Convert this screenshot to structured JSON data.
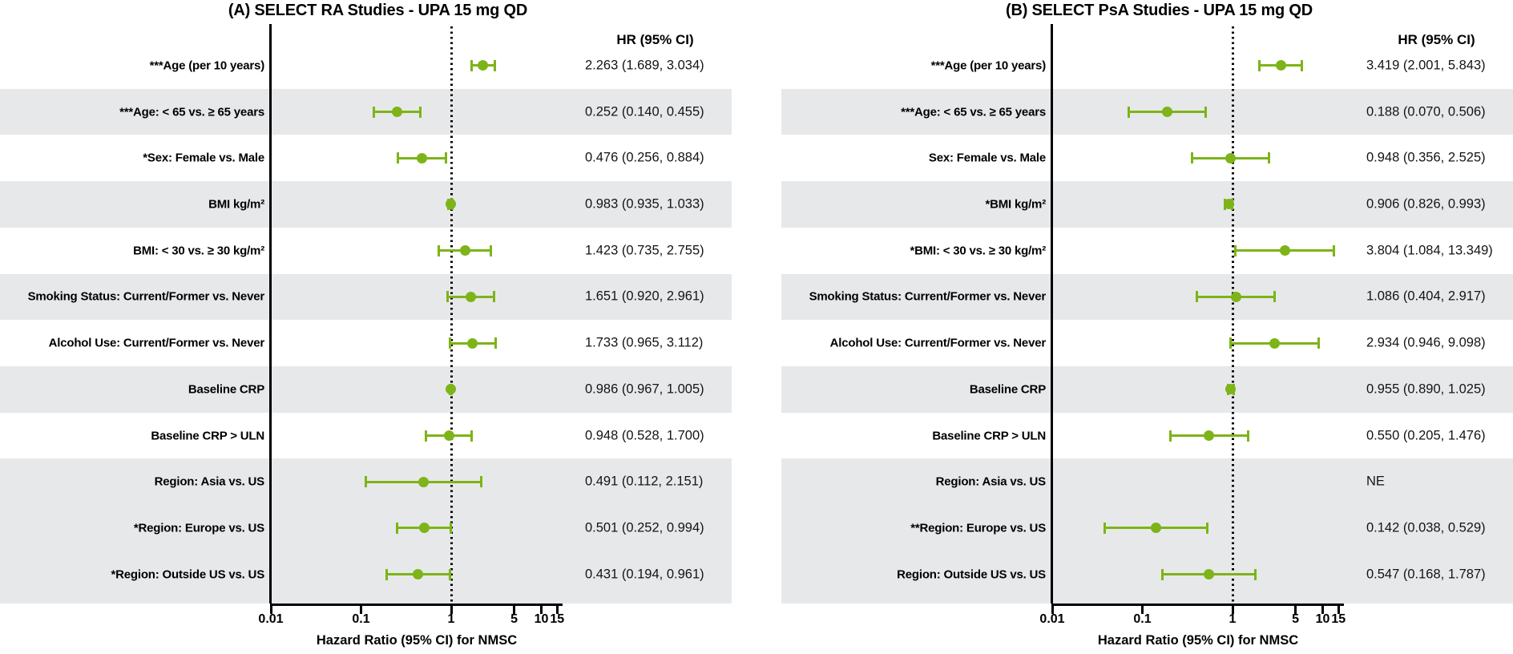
{
  "figure": {
    "accent_color": "#7db419",
    "stripe_color": "#e7e8e9",
    "reference_line_hr": 1
  },
  "chart_data": [
    {
      "type": "forest",
      "title": "(A) SELECT RA Studies - UPA 15 mg QD",
      "hr_header": "HR (95% CI)",
      "xlabel": "Hazard Ratio (95% CI) for NMSC",
      "x_scale": "log10",
      "x_range": [
        0.01,
        17
      ],
      "reference_line": 1,
      "x_ticks": [
        {
          "v": 0.01,
          "label": "0.01"
        },
        {
          "v": 0.1,
          "label": "0.1"
        },
        {
          "v": 1,
          "label": "1"
        },
        {
          "v": 5,
          "label": "5"
        },
        {
          "v": 10,
          "label": "10"
        },
        {
          "v": 15,
          "label": "15"
        }
      ],
      "rows": [
        {
          "label": "***Age (per 10 years)",
          "hr": 2.263,
          "lo": 1.689,
          "hi": 3.034,
          "text": "2.263 (1.689, 3.034)",
          "shaded": false
        },
        {
          "label": "***Age: < 65 vs. ≥ 65 years",
          "hr": 0.252,
          "lo": 0.14,
          "hi": 0.455,
          "text": "0.252 (0.140, 0.455)",
          "shaded": true
        },
        {
          "label": "*Sex: Female vs. Male",
          "hr": 0.476,
          "lo": 0.256,
          "hi": 0.884,
          "text": "0.476 (0.256, 0.884)",
          "shaded": false
        },
        {
          "label": "BMI kg/m²",
          "hr": 0.983,
          "lo": 0.935,
          "hi": 1.033,
          "text": "0.983 (0.935, 1.033)",
          "shaded": true
        },
        {
          "label": "BMI: < 30 vs. ≥ 30 kg/m²",
          "hr": 1.423,
          "lo": 0.735,
          "hi": 2.755,
          "text": "1.423 (0.735, 2.755)",
          "shaded": false
        },
        {
          "label": "Smoking Status: Current/Former vs. Never",
          "hr": 1.651,
          "lo": 0.92,
          "hi": 2.961,
          "text": "1.651 (0.920, 2.961)",
          "shaded": true
        },
        {
          "label": "Alcohol Use: Current/Former vs. Never",
          "hr": 1.733,
          "lo": 0.965,
          "hi": 3.112,
          "text": "1.733 (0.965, 3.112)",
          "shaded": false
        },
        {
          "label": "Baseline CRP",
          "hr": 0.986,
          "lo": 0.967,
          "hi": 1.005,
          "text": "0.986 (0.967, 1.005)",
          "shaded": true
        },
        {
          "label": "Baseline CRP > ULN",
          "hr": 0.948,
          "lo": 0.528,
          "hi": 1.7,
          "text": "0.948 (0.528, 1.700)",
          "shaded": false
        },
        {
          "label": "Region: Asia vs. US",
          "hr": 0.491,
          "lo": 0.112,
          "hi": 2.151,
          "text": "0.491 (0.112, 2.151)",
          "shaded": true
        },
        {
          "label": "*Region: Europe vs. US",
          "hr": 0.501,
          "lo": 0.252,
          "hi": 0.994,
          "text": "0.501 (0.252, 0.994)",
          "shaded": true
        },
        {
          "label": "*Region: Outside US vs. US",
          "hr": 0.431,
          "lo": 0.194,
          "hi": 0.961,
          "text": "0.431 (0.194, 0.961)",
          "shaded": true
        }
      ]
    },
    {
      "type": "forest",
      "title": "(B) SELECT PsA Studies - UPA 15 mg QD",
      "hr_header": "HR (95% CI)",
      "xlabel": "Hazard Ratio (95% CI) for NMSC",
      "x_scale": "log10",
      "x_range": [
        0.01,
        17
      ],
      "reference_line": 1,
      "x_ticks": [
        {
          "v": 0.01,
          "label": "0.01"
        },
        {
          "v": 0.1,
          "label": "0.1"
        },
        {
          "v": 1,
          "label": "1"
        },
        {
          "v": 5,
          "label": "5"
        },
        {
          "v": 10,
          "label": "10"
        },
        {
          "v": 15,
          "label": "15"
        }
      ],
      "rows": [
        {
          "label": "***Age (per 10 years)",
          "hr": 3.419,
          "lo": 2.001,
          "hi": 5.843,
          "text": "3.419 (2.001, 5.843)",
          "shaded": false
        },
        {
          "label": "***Age: < 65 vs. ≥ 65 years",
          "hr": 0.188,
          "lo": 0.07,
          "hi": 0.506,
          "text": "0.188 (0.070, 0.506)",
          "shaded": true
        },
        {
          "label": "Sex: Female vs. Male",
          "hr": 0.948,
          "lo": 0.356,
          "hi": 2.525,
          "text": "0.948 (0.356, 2.525)",
          "shaded": false
        },
        {
          "label": "*BMI kg/m²",
          "hr": 0.906,
          "lo": 0.826,
          "hi": 0.993,
          "text": "0.906 (0.826, 0.993)",
          "shaded": true
        },
        {
          "label": "*BMI: < 30 vs. ≥ 30 kg/m²",
          "hr": 3.804,
          "lo": 1.084,
          "hi": 13.349,
          "text": "3.804 (1.084, 13.349)",
          "shaded": false
        },
        {
          "label": "Smoking Status: Current/Former vs. Never",
          "hr": 1.086,
          "lo": 0.404,
          "hi": 2.917,
          "text": "1.086 (0.404, 2.917)",
          "shaded": true
        },
        {
          "label": "Alcohol Use: Current/Former vs. Never",
          "hr": 2.934,
          "lo": 0.946,
          "hi": 9.098,
          "text": "2.934 (0.946, 9.098)",
          "shaded": false
        },
        {
          "label": "Baseline CRP",
          "hr": 0.955,
          "lo": 0.89,
          "hi": 1.025,
          "text": "0.955 (0.890, 1.025)",
          "shaded": true
        },
        {
          "label": "Baseline CRP > ULN",
          "hr": 0.55,
          "lo": 0.205,
          "hi": 1.476,
          "text": "0.550 (0.205, 1.476)",
          "shaded": false
        },
        {
          "label": "Region: Asia vs. US",
          "hr": null,
          "lo": null,
          "hi": null,
          "text": "NE",
          "shaded": true
        },
        {
          "label": "**Region: Europe vs. US",
          "hr": 0.142,
          "lo": 0.038,
          "hi": 0.529,
          "text": "0.142 (0.038, 0.529)",
          "shaded": true
        },
        {
          "label": "Region: Outside US vs. US",
          "hr": 0.547,
          "lo": 0.168,
          "hi": 1.787,
          "text": "0.547 (0.168, 1.787)",
          "shaded": true
        }
      ]
    }
  ]
}
